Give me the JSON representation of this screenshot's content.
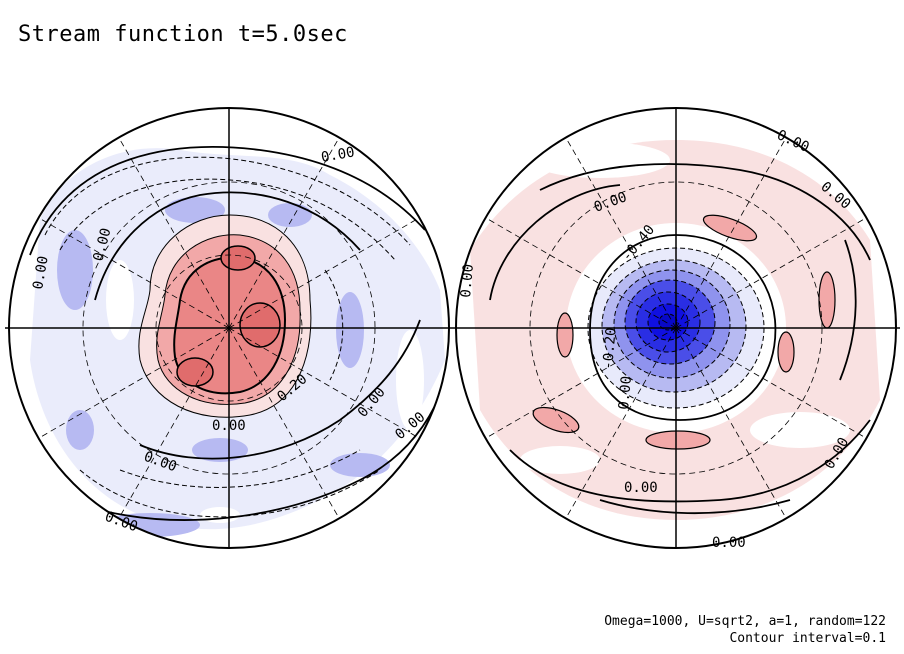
{
  "title": "Stream function t=5.0sec",
  "footer": {
    "params": "Omega=1000, U=sqrt2, a=1, random=122",
    "contour": "Contour interval=0.1"
  },
  "colors": {
    "positive_light": "#f9e1e1",
    "positive_mid": "#f2a8a8",
    "positive_strong": "#ea8686",
    "negative_light": "#e8eafb",
    "negative_mid": "#b7baf2",
    "negative_strong": "#4a4ee8",
    "negative_core": "#1010e0"
  },
  "left_panel": {
    "labels": [
      "0.00",
      "0.00",
      "0.00",
      "0.20",
      "0.00",
      "0.00",
      "0.00",
      "0.00",
      "0.00"
    ]
  },
  "right_panel": {
    "labels": [
      "0.00",
      "0.00",
      "0.00",
      "0.00",
      "-0.40",
      "-0.20",
      "0.00",
      "0.00",
      "0.00",
      "0.00"
    ]
  }
}
